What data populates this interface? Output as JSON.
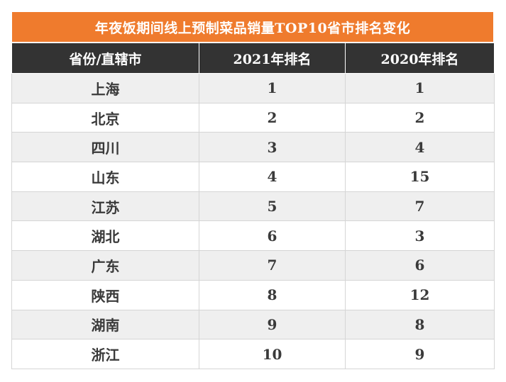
{
  "table": {
    "title": "年夜饭期间线上预制菜品销量TOP10省市排名变化",
    "columns": [
      "省份/直辖市",
      "2021年排名",
      "2020年排名"
    ],
    "rows": [
      {
        "province": "上海",
        "rank_2021": "1",
        "rank_2020": "1"
      },
      {
        "province": "北京",
        "rank_2021": "2",
        "rank_2020": "2"
      },
      {
        "province": "四川",
        "rank_2021": "3",
        "rank_2020": "4"
      },
      {
        "province": "山东",
        "rank_2021": "4",
        "rank_2020": "15"
      },
      {
        "province": "江苏",
        "rank_2021": "5",
        "rank_2020": "7"
      },
      {
        "province": "湖北",
        "rank_2021": "6",
        "rank_2020": "3"
      },
      {
        "province": "广东",
        "rank_2021": "7",
        "rank_2020": "6"
      },
      {
        "province": "陕西",
        "rank_2021": "8",
        "rank_2020": "12"
      },
      {
        "province": "湖南",
        "rank_2021": "9",
        "rank_2020": "8"
      },
      {
        "province": "浙江",
        "rank_2021": "10",
        "rank_2020": "9"
      }
    ]
  },
  "colors": {
    "title_bg": "#ef7b2d",
    "header_bg": "#333333",
    "row_alt_bg": "#efefef",
    "text": "#3a3a3a"
  }
}
